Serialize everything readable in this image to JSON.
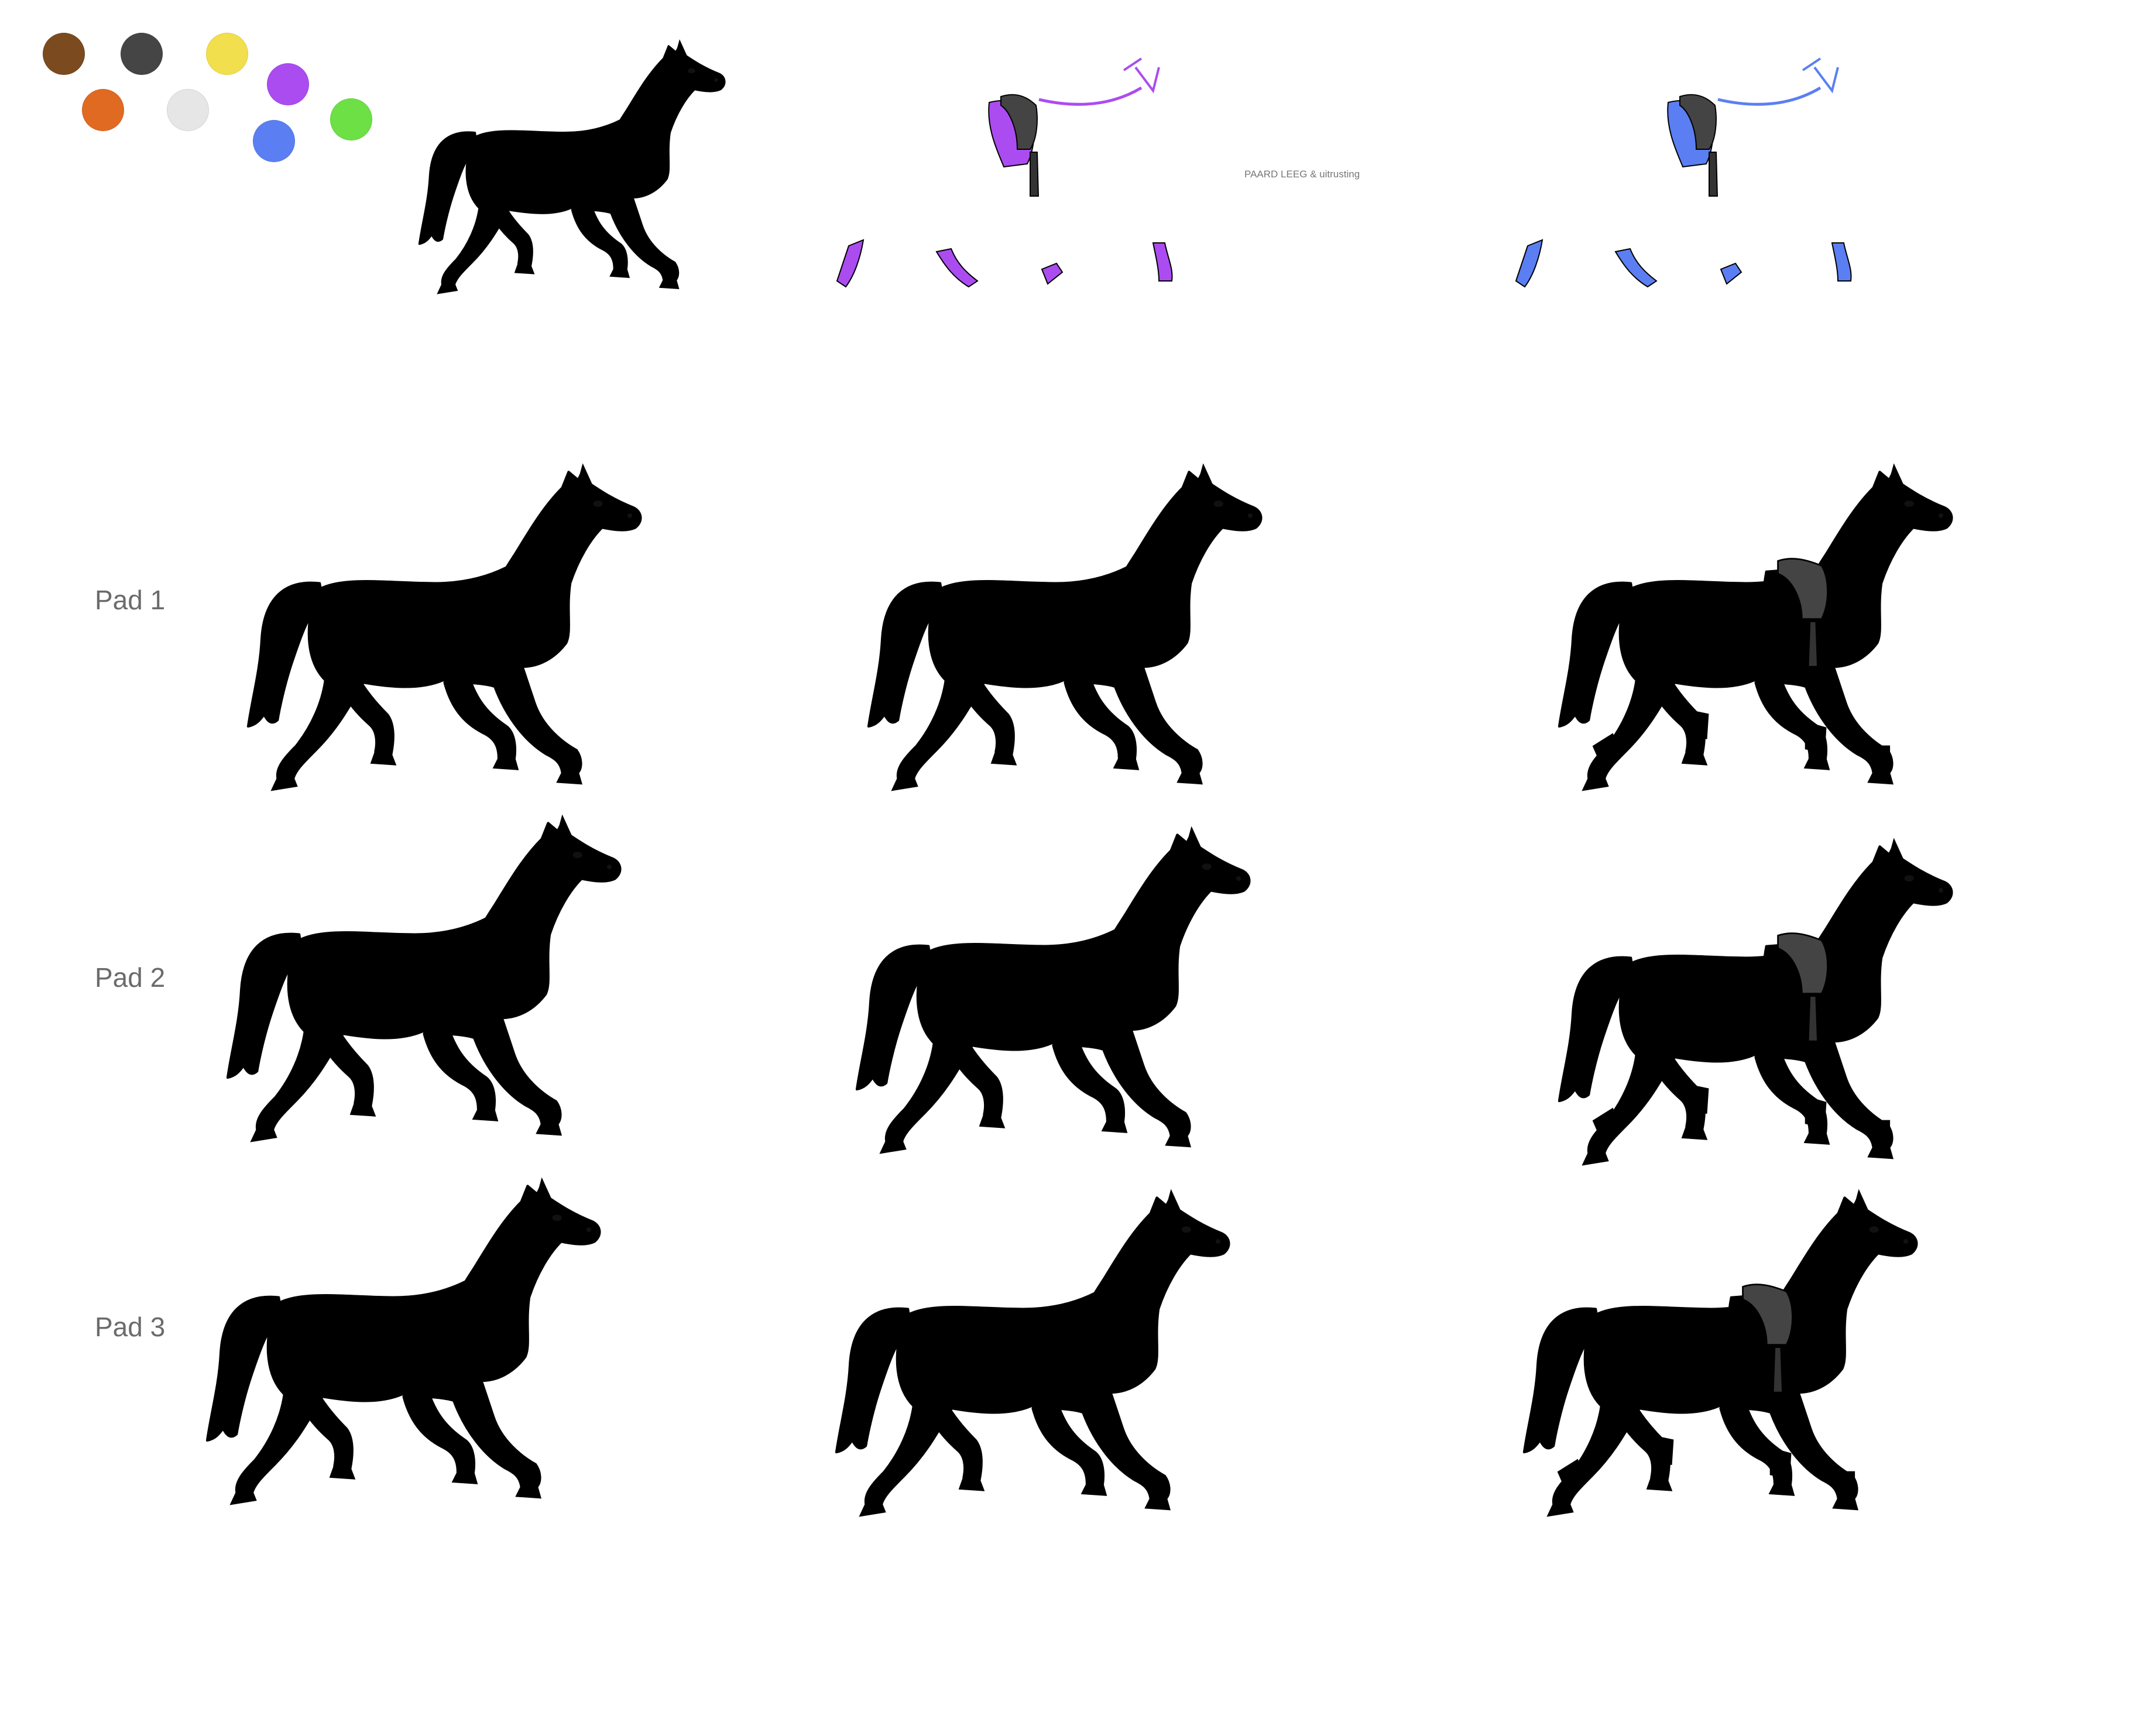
{
  "caption": "PAARD LEEG & uitrusting",
  "palette": {
    "brown": "#7b4a1e",
    "dark_grey": "#454545",
    "yellow": "#f2df4d",
    "purple": "#ab4cf0",
    "orange": "#e06a22",
    "light_grey": "#e6e6e6",
    "blue": "#5b7ff2",
    "green": "#6de046"
  },
  "swatch_colors": [
    "#7b4a1e",
    "#454545",
    "#f2df4d",
    "#ab4cf0",
    "#e06a22",
    "#e6e6e6",
    "#5b7ff2",
    "#6de046"
  ],
  "rows": [
    {
      "label": "Pad 1"
    },
    {
      "label": "Pad 2"
    },
    {
      "label": "Pad 3"
    }
  ],
  "hoof_color": "#c7b6b4",
  "saddle_color": "#444444"
}
